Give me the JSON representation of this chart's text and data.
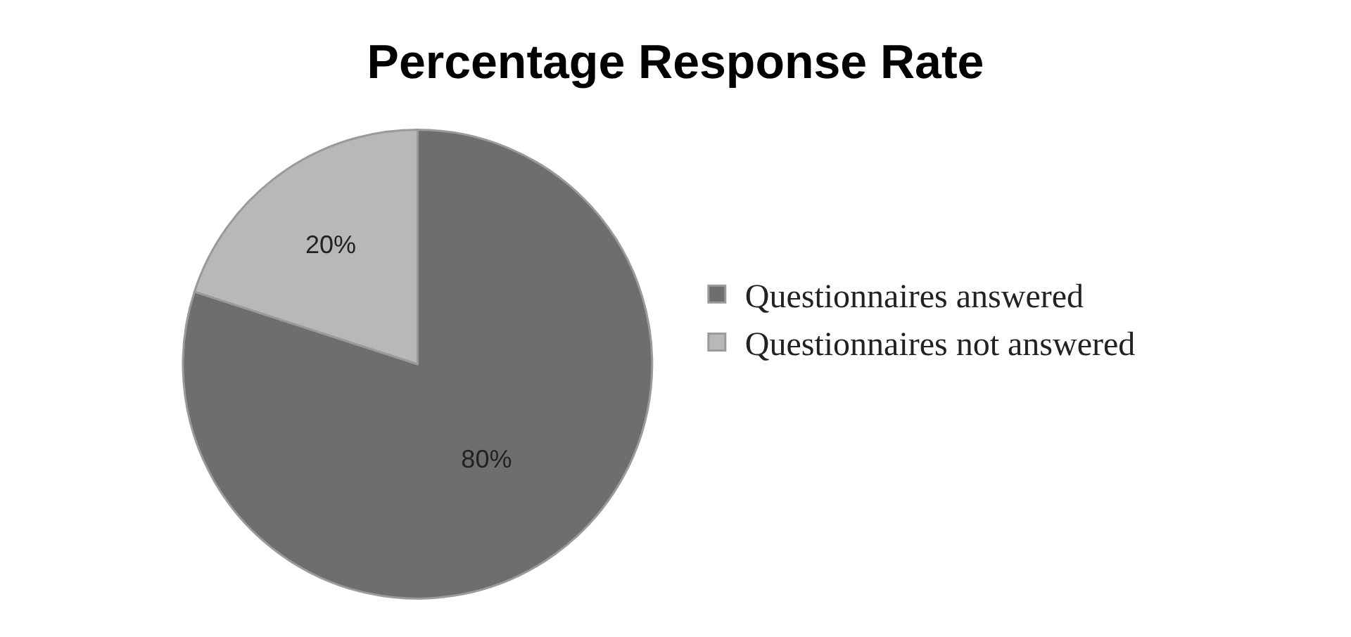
{
  "chart_data": {
    "type": "pie",
    "title": "Percentage Response Rate",
    "categories": [
      "Questionnaires answered",
      "Questionnaires not answered"
    ],
    "values": [
      80,
      20
    ],
    "value_labels": [
      "80%",
      "20%"
    ],
    "colors": [
      "#6e6e6e",
      "#b8b8b8"
    ],
    "legend": "right"
  }
}
